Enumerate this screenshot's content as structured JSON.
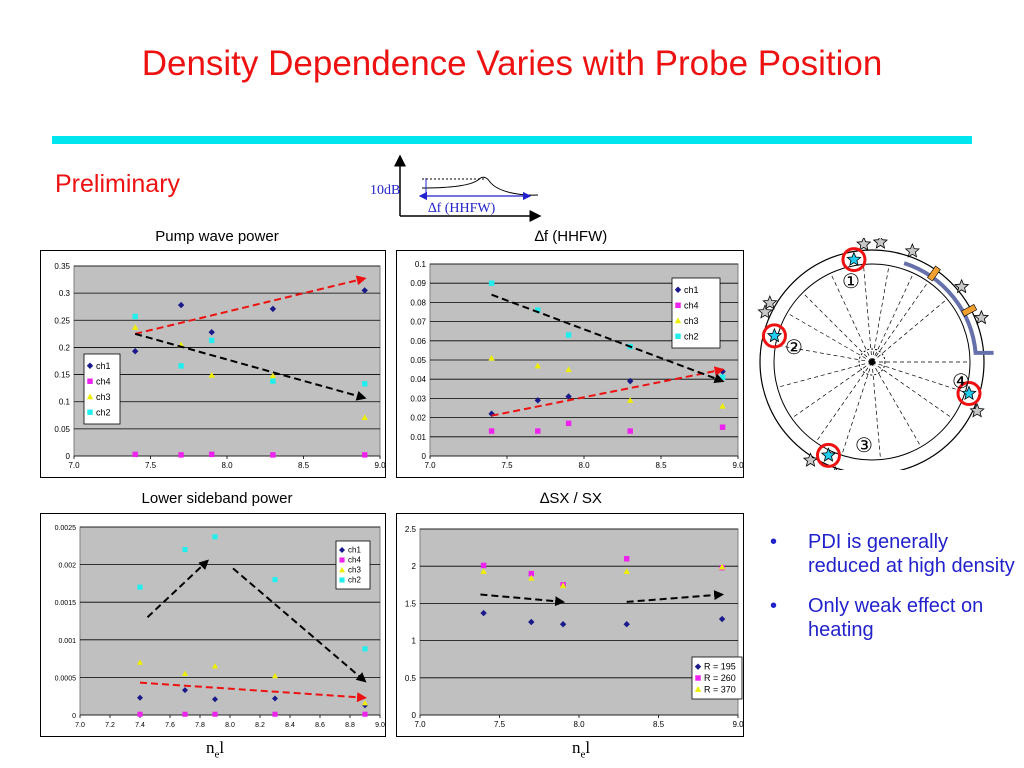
{
  "slide": {
    "title": "Density Dependence Varies with Probe Position",
    "preliminary": "Preliminary",
    "inset": {
      "db_label": "10dB",
      "df_label": "∆f (HHFW)"
    },
    "bullets": [
      "PDI is generally reduced at high density",
      "Only weak effect on heating"
    ],
    "xlabel_base": "n",
    "xlabel_sub": "e",
    "xlabel_tail": "l",
    "probe_numbers": [
      "①",
      "②",
      "③",
      "④"
    ],
    "bullet_char": "•"
  },
  "colors": {
    "ch1": "#1a1a8a",
    "ch4": "#ee22ee",
    "ch3": "#eeee00",
    "ch2": "#22eeee",
    "plot_bg": "#c0c0c0",
    "red_arrow": "#ee1111",
    "black_arrow": "#000000"
  },
  "chart_data": [
    {
      "type": "scatter",
      "title": "Pump wave power",
      "x_ticks": [
        "7.0",
        "7.5",
        "8.0",
        "8.5",
        "9.0"
      ],
      "y_ticks": [
        "0",
        "0.05",
        "0.1",
        "0.15",
        "0.2",
        "0.25",
        "0.3",
        "0.35"
      ],
      "xlim": [
        7.0,
        9.0
      ],
      "ylim": [
        0,
        0.35
      ],
      "legend": [
        "ch1",
        "ch4",
        "ch3",
        "ch2"
      ],
      "series": [
        {
          "name": "ch1",
          "x": [
            7.4,
            7.7,
            7.9,
            8.3,
            8.9
          ],
          "y": [
            0.193,
            0.278,
            0.228,
            0.271,
            0.305
          ]
        },
        {
          "name": "ch4",
          "x": [
            7.4,
            7.7,
            7.9,
            8.3,
            8.9
          ],
          "y": [
            0.003,
            0.002,
            0.003,
            0.002,
            0.002
          ]
        },
        {
          "name": "ch3",
          "x": [
            7.4,
            7.7,
            7.9,
            8.3,
            8.9
          ],
          "y": [
            0.237,
            0.205,
            0.149,
            0.148,
            0.071
          ]
        },
        {
          "name": "ch2",
          "x": [
            7.4,
            7.7,
            7.9,
            8.3,
            8.9
          ],
          "y": [
            0.257,
            0.166,
            0.213,
            0.138,
            0.133
          ]
        }
      ],
      "arrows": [
        {
          "color": "red",
          "from": [
            7.4,
            0.225
          ],
          "to": [
            8.9,
            0.327
          ]
        },
        {
          "color": "black",
          "from": [
            7.4,
            0.225
          ],
          "to": [
            8.9,
            0.107
          ]
        }
      ]
    },
    {
      "type": "scatter",
      "title": "∆f  (HHFW)",
      "x_ticks": [
        "7.0",
        "7.5",
        "8.0",
        "8.5",
        "9.0"
      ],
      "y_ticks": [
        "0",
        "0.01",
        "0.02",
        "0.03",
        "0.04",
        "0.05",
        "0.06",
        "0.07",
        "0.08",
        "0.09",
        "0.1"
      ],
      "xlim": [
        7.0,
        9.0
      ],
      "ylim": [
        0,
        0.1
      ],
      "legend": [
        "ch1",
        "ch4",
        "ch3",
        "ch2"
      ],
      "series": [
        {
          "name": "ch1",
          "x": [
            7.4,
            7.7,
            7.9,
            8.3,
            8.9
          ],
          "y": [
            0.022,
            0.029,
            0.031,
            0.039,
            0.044
          ]
        },
        {
          "name": "ch4",
          "x": [
            7.4,
            7.7,
            7.9,
            8.3,
            8.9
          ],
          "y": [
            0.013,
            0.013,
            0.017,
            0.013,
            0.015
          ]
        },
        {
          "name": "ch3",
          "x": [
            7.4,
            7.7,
            7.9,
            8.3,
            8.9
          ],
          "y": [
            0.051,
            0.047,
            0.045,
            0.029,
            0.026
          ]
        },
        {
          "name": "ch2",
          "x": [
            7.4,
            7.7,
            7.9,
            8.3,
            8.9
          ],
          "y": [
            0.09,
            0.076,
            0.063,
            0.057,
            0.041
          ]
        }
      ],
      "arrows": [
        {
          "color": "red",
          "from": [
            7.4,
            0.021
          ],
          "to": [
            8.9,
            0.045
          ]
        },
        {
          "color": "black",
          "from": [
            7.4,
            0.084
          ],
          "to": [
            8.9,
            0.039
          ]
        }
      ]
    },
    {
      "type": "scatter",
      "title": "Lower sideband  power",
      "x_ticks": [
        "7.0",
        "7.2",
        "7.4",
        "7.6",
        "7.8",
        "8.0",
        "8.2",
        "8.4",
        "8.6",
        "8.8",
        "9.0"
      ],
      "y_ticks": [
        "0",
        "0.0005",
        "0.001",
        "0.0015",
        "0.002",
        "0.0025"
      ],
      "xlim": [
        7.0,
        9.0
      ],
      "ylim": [
        0,
        0.0025
      ],
      "legend": [
        "ch1",
        "ch4",
        "ch3",
        "ch2"
      ],
      "series": [
        {
          "name": "ch1",
          "x": [
            7.4,
            7.7,
            7.9,
            8.3,
            8.9
          ],
          "y": [
            0.00023,
            0.00033,
            0.00021,
            0.00022,
            0.00013
          ]
        },
        {
          "name": "ch4",
          "x": [
            7.4,
            7.7,
            7.9,
            8.3,
            8.9
          ],
          "y": [
            1e-05,
            1e-05,
            1e-05,
            1e-05,
            1e-05
          ]
        },
        {
          "name": "ch3",
          "x": [
            7.4,
            7.7,
            7.9,
            8.3,
            8.9
          ],
          "y": [
            0.0007,
            0.00055,
            0.00065,
            0.00052,
            0.00016
          ]
        },
        {
          "name": "ch2",
          "x": [
            7.4,
            7.7,
            7.9,
            8.3,
            8.9
          ],
          "y": [
            0.0017,
            0.0022,
            0.00237,
            0.0018,
            0.00088
          ]
        }
      ],
      "arrows": [
        {
          "color": "black",
          "from": [
            7.45,
            0.0013
          ],
          "to": [
            7.85,
            0.00205
          ]
        },
        {
          "color": "black",
          "from": [
            8.02,
            0.00195
          ],
          "to": [
            8.9,
            0.00045
          ]
        },
        {
          "color": "red",
          "from": [
            7.4,
            0.00043
          ],
          "to": [
            8.9,
            0.00023
          ]
        }
      ]
    },
    {
      "type": "scatter",
      "title": "∆SX / SX",
      "x_ticks": [
        "7.0",
        "7.5",
        "8.0",
        "8.5",
        "9.0"
      ],
      "y_ticks": [
        "0",
        "0.5",
        "1",
        "1.5",
        "2",
        "2.5"
      ],
      "xlim": [
        7.0,
        9.0
      ],
      "ylim": [
        0,
        2.5
      ],
      "legend": [
        "R = 195",
        "R = 260",
        "R = 370"
      ],
      "series": [
        {
          "name": "R = 195",
          "x": [
            7.4,
            7.7,
            7.9,
            8.3,
            8.9
          ],
          "y": [
            1.37,
            1.25,
            1.22,
            1.22,
            1.29
          ]
        },
        {
          "name": "R = 260",
          "x": [
            7.4,
            7.7,
            7.9,
            8.3,
            8.9
          ],
          "y": [
            2.01,
            1.9,
            1.75,
            2.1,
            1.98
          ]
        },
        {
          "name": "R = 370",
          "x": [
            7.4,
            7.7,
            7.9,
            8.3,
            8.9
          ],
          "y": [
            1.93,
            1.84,
            1.74,
            1.93,
            1.99
          ]
        }
      ],
      "arrows": [
        {
          "color": "black",
          "from": [
            7.38,
            1.62
          ],
          "to": [
            7.9,
            1.52
          ]
        },
        {
          "color": "black",
          "from": [
            8.3,
            1.52
          ],
          "to": [
            8.9,
            1.62
          ]
        }
      ]
    }
  ]
}
